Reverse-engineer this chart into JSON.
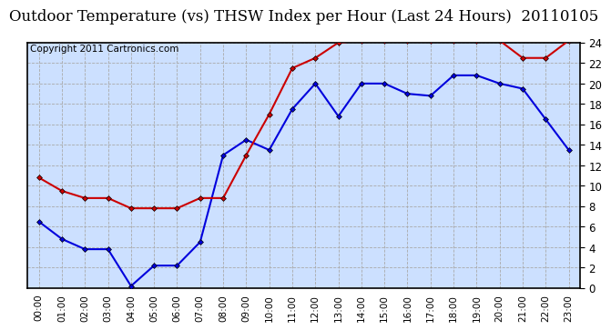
{
  "title": "Outdoor Temperature (vs) THSW Index per Hour (Last 24 Hours)  20110105",
  "copyright": "Copyright 2011 Cartronics.com",
  "hours": [
    "00:00",
    "01:00",
    "02:00",
    "03:00",
    "04:00",
    "05:00",
    "06:00",
    "07:00",
    "08:00",
    "09:00",
    "10:00",
    "11:00",
    "12:00",
    "13:00",
    "14:00",
    "15:00",
    "16:00",
    "17:00",
    "18:00",
    "19:00",
    "20:00",
    "21:00",
    "22:00",
    "23:00"
  ],
  "temp_blue": [
    6.5,
    4.8,
    3.8,
    3.8,
    0.2,
    2.2,
    2.2,
    4.5,
    13.0,
    14.5,
    13.5,
    17.5,
    20.0,
    16.8,
    20.0,
    20.0,
    19.0,
    18.8,
    20.8,
    20.8,
    20.0,
    19.5,
    16.5,
    13.5
  ],
  "thsw_red": [
    10.8,
    9.5,
    8.8,
    8.8,
    7.8,
    7.8,
    7.8,
    8.8,
    8.8,
    13.0,
    17.0,
    21.5,
    22.5,
    24.0,
    24.2,
    24.2,
    24.2,
    24.2,
    24.2,
    24.2,
    24.2,
    22.5,
    22.5,
    24.2
  ],
  "ylim": [
    0.0,
    24.0
  ],
  "yticks": [
    0.0,
    2.0,
    4.0,
    6.0,
    8.0,
    10.0,
    12.0,
    14.0,
    16.0,
    18.0,
    20.0,
    22.0,
    24.0
  ],
  "blue_color": "#0000dd",
  "red_color": "#cc0000",
  "grid_color": "#aaaaaa",
  "bg_color": "#ffffff",
  "plot_bg_color": "#cce0ff",
  "title_fontsize": 12,
  "copyright_fontsize": 7.5
}
